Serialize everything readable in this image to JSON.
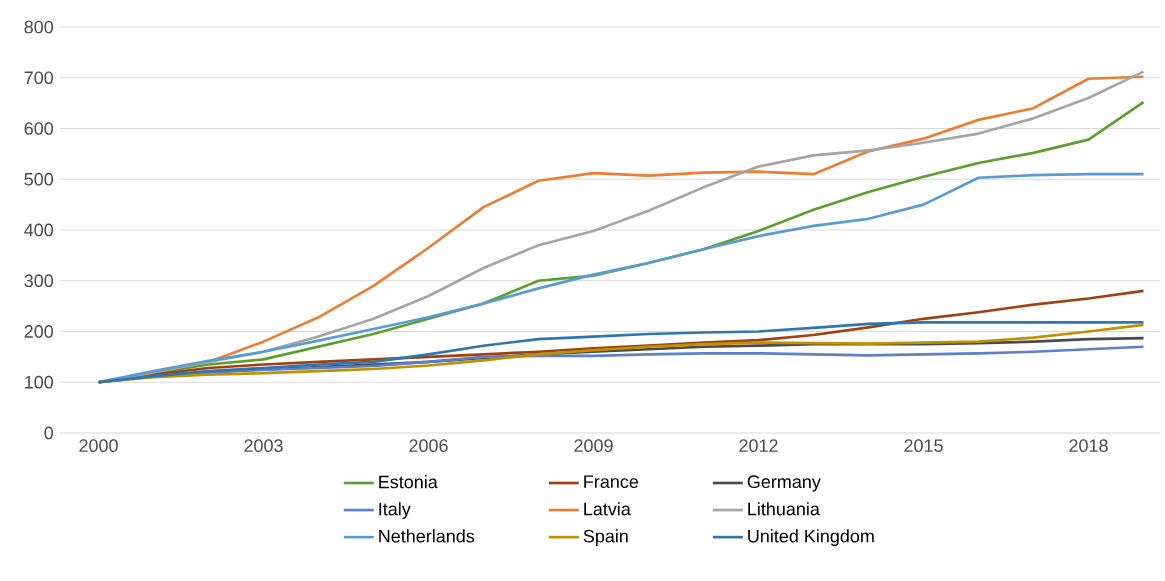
{
  "chart_data": {
    "type": "line",
    "x": [
      2000,
      2001,
      2002,
      2003,
      2004,
      2005,
      2006,
      2007,
      2008,
      2009,
      2010,
      2011,
      2012,
      2013,
      2014,
      2015,
      2016,
      2017,
      2018,
      2019
    ],
    "xlim": [
      1999.3,
      2019.3
    ],
    "xticks": [
      2000,
      2003,
      2006,
      2009,
      2012,
      2015,
      2018
    ],
    "ylim": [
      0,
      800
    ],
    "yticks": [
      0,
      100,
      200,
      300,
      400,
      500,
      600,
      700,
      800
    ],
    "grid": "y",
    "legend": "bottom",
    "marker": "none",
    "line_style": "solid",
    "series": [
      {
        "name": "Estonia",
        "color": "#5aa02c",
        "values": [
          100,
          118,
          135,
          145,
          170,
          195,
          225,
          255,
          300,
          310,
          335,
          362,
          398,
          440,
          475,
          505,
          532,
          552,
          578,
          652
        ]
      },
      {
        "name": "France",
        "color": "#a0410d",
        "values": [
          100,
          115,
          128,
          135,
          140,
          145,
          150,
          155,
          160,
          167,
          172,
          178,
          183,
          193,
          208,
          225,
          238,
          253,
          265,
          280
        ]
      },
      {
        "name": "Germany",
        "color": "#4a4a4a",
        "values": [
          100,
          112,
          120,
          125,
          130,
          135,
          140,
          148,
          155,
          160,
          165,
          170,
          172,
          175,
          175,
          175,
          177,
          180,
          185,
          187
        ]
      },
      {
        "name": "Italy",
        "color": "#5b7fc8",
        "values": [
          100,
          112,
          120,
          125,
          128,
          132,
          140,
          150,
          152,
          152,
          155,
          157,
          157,
          155,
          153,
          155,
          157,
          160,
          165,
          170
        ]
      },
      {
        "name": "Latvia",
        "color": "#ed7d31",
        "values": [
          100,
          120,
          140,
          180,
          228,
          290,
          365,
          445,
          497,
          512,
          507,
          513,
          515,
          510,
          555,
          580,
          617,
          640,
          698,
          702
        ]
      },
      {
        "name": "Lithuania",
        "color": "#a5a5a5",
        "values": [
          100,
          120,
          140,
          160,
          190,
          225,
          270,
          325,
          370,
          398,
          438,
          484,
          525,
          547,
          557,
          572,
          590,
          620,
          660,
          712
        ]
      },
      {
        "name": "Netherlands",
        "color": "#5b9bd5",
        "values": [
          100,
          122,
          142,
          160,
          182,
          205,
          228,
          255,
          285,
          312,
          335,
          362,
          388,
          408,
          422,
          450,
          503,
          508,
          510,
          510
        ]
      },
      {
        "name": "Spain",
        "color": "#bf9000",
        "values": [
          100,
          110,
          115,
          118,
          122,
          126,
          133,
          143,
          155,
          163,
          170,
          175,
          178,
          177,
          176,
          178,
          180,
          188,
          200,
          213
        ]
      },
      {
        "name": "United Kingdom",
        "color": "#2e75b6",
        "values": [
          100,
          112,
          122,
          128,
          135,
          140,
          155,
          172,
          185,
          190,
          195,
          198,
          200,
          207,
          215,
          218,
          218,
          218,
          218,
          218
        ]
      }
    ]
  }
}
